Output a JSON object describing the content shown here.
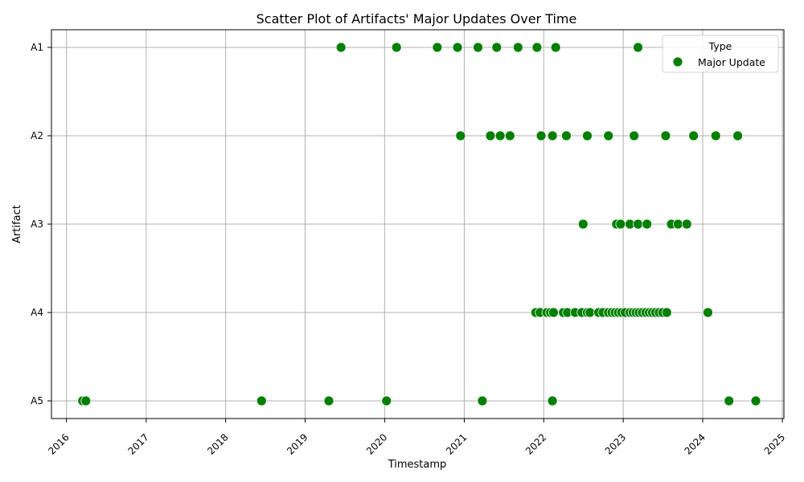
{
  "chart_data": {
    "type": "scatter",
    "title": "Scatter Plot of Artifacts' Major Updates Over Time",
    "xlabel": "Timestamp",
    "ylabel": "Artifact",
    "x_ticks": [
      "2016",
      "2017",
      "2018",
      "2019",
      "2020",
      "2021",
      "2022",
      "2023",
      "2024",
      "2025"
    ],
    "xlim": [
      "2015-10-24",
      "2025-01-08"
    ],
    "categories": [
      "A1",
      "A2",
      "A3",
      "A4",
      "A5"
    ],
    "grid": true,
    "legend": {
      "title": "Type",
      "placement": "top-right",
      "entries": [
        "Major Update"
      ]
    },
    "marker_color": "#008000",
    "series": [
      {
        "name": "Major Update",
        "points": [
          {
            "x": "2019-06-15",
            "y": "A1"
          },
          {
            "x": "2020-02-25",
            "y": "A1"
          },
          {
            "x": "2020-08-30",
            "y": "A1"
          },
          {
            "x": "2020-12-01",
            "y": "A1"
          },
          {
            "x": "2021-03-05",
            "y": "A1"
          },
          {
            "x": "2021-05-30",
            "y": "A1"
          },
          {
            "x": "2021-09-05",
            "y": "A1"
          },
          {
            "x": "2021-12-01",
            "y": "A1"
          },
          {
            "x": "2022-02-25",
            "y": "A1"
          },
          {
            "x": "2023-03-10",
            "y": "A1"
          },
          {
            "x": "2020-12-15",
            "y": "A2"
          },
          {
            "x": "2021-05-01",
            "y": "A2"
          },
          {
            "x": "2021-06-15",
            "y": "A2"
          },
          {
            "x": "2021-07-30",
            "y": "A2"
          },
          {
            "x": "2021-12-20",
            "y": "A2"
          },
          {
            "x": "2022-02-10",
            "y": "A2"
          },
          {
            "x": "2022-04-15",
            "y": "A2"
          },
          {
            "x": "2022-07-20",
            "y": "A2"
          },
          {
            "x": "2022-10-25",
            "y": "A2"
          },
          {
            "x": "2023-02-20",
            "y": "A2"
          },
          {
            "x": "2023-07-15",
            "y": "A2"
          },
          {
            "x": "2023-11-20",
            "y": "A2"
          },
          {
            "x": "2024-03-01",
            "y": "A2"
          },
          {
            "x": "2024-06-10",
            "y": "A2"
          },
          {
            "x": "2022-07-01",
            "y": "A3"
          },
          {
            "x": "2022-12-01",
            "y": "A3"
          },
          {
            "x": "2022-12-20",
            "y": "A3"
          },
          {
            "x": "2023-02-01",
            "y": "A3"
          },
          {
            "x": "2023-03-10",
            "y": "A3"
          },
          {
            "x": "2023-04-20",
            "y": "A3"
          },
          {
            "x": "2023-08-10",
            "y": "A3"
          },
          {
            "x": "2023-09-10",
            "y": "A3"
          },
          {
            "x": "2023-10-20",
            "y": "A3"
          },
          {
            "x": "2021-11-25",
            "y": "A4"
          },
          {
            "x": "2021-12-15",
            "y": "A4"
          },
          {
            "x": "2022-01-15",
            "y": "A4"
          },
          {
            "x": "2022-02-01",
            "y": "A4"
          },
          {
            "x": "2022-02-15",
            "y": "A4"
          },
          {
            "x": "2022-04-01",
            "y": "A4"
          },
          {
            "x": "2022-04-20",
            "y": "A4"
          },
          {
            "x": "2022-05-25",
            "y": "A4"
          },
          {
            "x": "2022-06-25",
            "y": "A4"
          },
          {
            "x": "2022-07-20",
            "y": "A4"
          },
          {
            "x": "2022-08-01",
            "y": "A4"
          },
          {
            "x": "2022-09-10",
            "y": "A4"
          },
          {
            "x": "2022-09-30",
            "y": "A4"
          },
          {
            "x": "2022-10-25",
            "y": "A4"
          },
          {
            "x": "2022-11-10",
            "y": "A4"
          },
          {
            "x": "2022-11-25",
            "y": "A4"
          },
          {
            "x": "2022-12-10",
            "y": "A4"
          },
          {
            "x": "2022-12-25",
            "y": "A4"
          },
          {
            "x": "2023-01-10",
            "y": "A4"
          },
          {
            "x": "2023-02-01",
            "y": "A4"
          },
          {
            "x": "2023-02-15",
            "y": "A4"
          },
          {
            "x": "2023-03-01",
            "y": "A4"
          },
          {
            "x": "2023-03-15",
            "y": "A4"
          },
          {
            "x": "2023-03-30",
            "y": "A4"
          },
          {
            "x": "2023-04-15",
            "y": "A4"
          },
          {
            "x": "2023-05-01",
            "y": "A4"
          },
          {
            "x": "2023-05-15",
            "y": "A4"
          },
          {
            "x": "2023-05-30",
            "y": "A4"
          },
          {
            "x": "2023-06-15",
            "y": "A4"
          },
          {
            "x": "2023-07-01",
            "y": "A4"
          },
          {
            "x": "2023-07-20",
            "y": "A4"
          },
          {
            "x": "2024-01-25",
            "y": "A4"
          },
          {
            "x": "2016-03-15",
            "y": "A5"
          },
          {
            "x": "2016-03-30",
            "y": "A5"
          },
          {
            "x": "2018-06-15",
            "y": "A5"
          },
          {
            "x": "2019-04-20",
            "y": "A5"
          },
          {
            "x": "2020-01-10",
            "y": "A5"
          },
          {
            "x": "2021-03-25",
            "y": "A5"
          },
          {
            "x": "2022-02-10",
            "y": "A5"
          },
          {
            "x": "2024-05-01",
            "y": "A5"
          },
          {
            "x": "2024-09-01",
            "y": "A5"
          }
        ]
      }
    ]
  }
}
